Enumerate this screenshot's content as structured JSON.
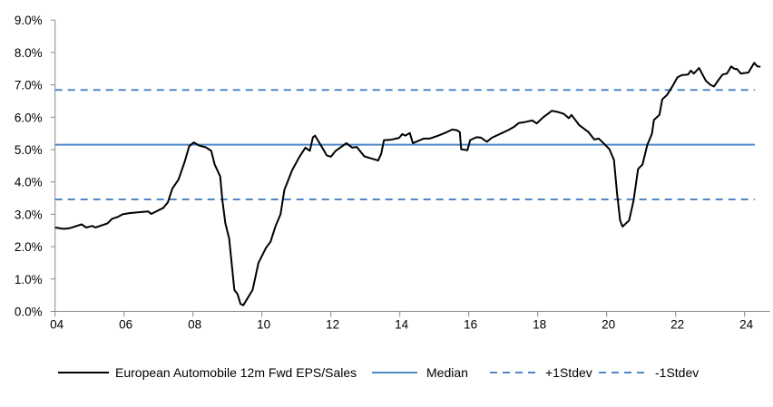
{
  "chart_data": {
    "type": "line",
    "title": "",
    "xlabel": "",
    "ylabel": "",
    "xlim": [
      2004,
      2024.6
    ],
    "ylim": [
      0,
      9
    ],
    "x_ticks": [
      2004,
      2006,
      2008,
      2010,
      2012,
      2014,
      2016,
      2018,
      2020,
      2022,
      2024
    ],
    "x_tick_labels": [
      "04",
      "06",
      "08",
      "10",
      "12",
      "14",
      "16",
      "18",
      "20",
      "22",
      "24"
    ],
    "y_ticks": [
      0,
      1,
      2,
      3,
      4,
      5,
      6,
      7,
      8,
      9
    ],
    "y_tick_labels": [
      "0.0%",
      "1.0%",
      "2.0%",
      "3.0%",
      "4.0%",
      "5.0%",
      "6.0%",
      "7.0%",
      "8.0%",
      "9.0%"
    ],
    "grid": false,
    "legend_position": "bottom",
    "series": [
      {
        "name": "European Automobile 12m Fwd EPS/Sales",
        "color": "#000000",
        "style": "solid",
        "points": [
          [
            2004.0,
            2.59
          ],
          [
            2004.25,
            2.55
          ],
          [
            2004.42,
            2.57
          ],
          [
            2004.77,
            2.69
          ],
          [
            2004.9,
            2.59
          ],
          [
            2005.08,
            2.64
          ],
          [
            2005.17,
            2.59
          ],
          [
            2005.52,
            2.72
          ],
          [
            2005.65,
            2.86
          ],
          [
            2005.82,
            2.92
          ],
          [
            2005.96,
            3.0
          ],
          [
            2006.18,
            3.04
          ],
          [
            2006.7,
            3.09
          ],
          [
            2006.79,
            3.01
          ],
          [
            2007.14,
            3.2
          ],
          [
            2007.27,
            3.37
          ],
          [
            2007.4,
            3.79
          ],
          [
            2007.58,
            4.07
          ],
          [
            2007.75,
            4.59
          ],
          [
            2007.89,
            5.1
          ],
          [
            2008.02,
            5.22
          ],
          [
            2008.19,
            5.12
          ],
          [
            2008.37,
            5.07
          ],
          [
            2008.53,
            4.96
          ],
          [
            2008.63,
            4.54
          ],
          [
            2008.79,
            4.17
          ],
          [
            2008.85,
            3.46
          ],
          [
            2008.94,
            2.72
          ],
          [
            2009.05,
            2.25
          ],
          [
            2009.2,
            0.66
          ],
          [
            2009.29,
            0.54
          ],
          [
            2009.38,
            0.23
          ],
          [
            2009.46,
            0.19
          ],
          [
            2009.73,
            0.66
          ],
          [
            2009.9,
            1.5
          ],
          [
            2010.12,
            1.97
          ],
          [
            2010.25,
            2.15
          ],
          [
            2010.39,
            2.62
          ],
          [
            2010.54,
            3.0
          ],
          [
            2010.65,
            3.75
          ],
          [
            2010.87,
            4.35
          ],
          [
            2011.09,
            4.78
          ],
          [
            2011.26,
            5.06
          ],
          [
            2011.39,
            4.96
          ],
          [
            2011.48,
            5.38
          ],
          [
            2011.54,
            5.43
          ],
          [
            2011.7,
            5.15
          ],
          [
            2011.88,
            4.82
          ],
          [
            2012.0,
            4.78
          ],
          [
            2012.14,
            4.96
          ],
          [
            2012.45,
            5.2
          ],
          [
            2012.62,
            5.06
          ],
          [
            2012.75,
            5.08
          ],
          [
            2012.97,
            4.79
          ],
          [
            2013.15,
            4.73
          ],
          [
            2013.37,
            4.66
          ],
          [
            2013.46,
            4.87
          ],
          [
            2013.54,
            5.29
          ],
          [
            2013.72,
            5.3
          ],
          [
            2013.98,
            5.36
          ],
          [
            2014.07,
            5.48
          ],
          [
            2014.16,
            5.43
          ],
          [
            2014.29,
            5.51
          ],
          [
            2014.38,
            5.2
          ],
          [
            2014.69,
            5.34
          ],
          [
            2014.86,
            5.34
          ],
          [
            2015.12,
            5.43
          ],
          [
            2015.3,
            5.51
          ],
          [
            2015.52,
            5.62
          ],
          [
            2015.65,
            5.6
          ],
          [
            2015.74,
            5.54
          ],
          [
            2015.78,
            5.01
          ],
          [
            2015.96,
            4.98
          ],
          [
            2016.04,
            5.29
          ],
          [
            2016.22,
            5.38
          ],
          [
            2016.35,
            5.37
          ],
          [
            2016.53,
            5.24
          ],
          [
            2016.66,
            5.36
          ],
          [
            2016.96,
            5.51
          ],
          [
            2017.14,
            5.6
          ],
          [
            2017.32,
            5.71
          ],
          [
            2017.45,
            5.82
          ],
          [
            2017.62,
            5.85
          ],
          [
            2017.84,
            5.9
          ],
          [
            2017.97,
            5.81
          ],
          [
            2018.15,
            5.99
          ],
          [
            2018.41,
            6.2
          ],
          [
            2018.59,
            6.16
          ],
          [
            2018.76,
            6.1
          ],
          [
            2018.9,
            5.97
          ],
          [
            2018.98,
            6.07
          ],
          [
            2019.2,
            5.76
          ],
          [
            2019.47,
            5.54
          ],
          [
            2019.64,
            5.31
          ],
          [
            2019.77,
            5.34
          ],
          [
            2019.95,
            5.15
          ],
          [
            2020.08,
            5.01
          ],
          [
            2020.21,
            4.68
          ],
          [
            2020.3,
            3.65
          ],
          [
            2020.39,
            2.81
          ],
          [
            2020.46,
            2.62
          ],
          [
            2020.65,
            2.81
          ],
          [
            2020.78,
            3.42
          ],
          [
            2020.91,
            4.4
          ],
          [
            2021.04,
            4.54
          ],
          [
            2021.18,
            5.15
          ],
          [
            2021.31,
            5.48
          ],
          [
            2021.37,
            5.92
          ],
          [
            2021.53,
            6.07
          ],
          [
            2021.61,
            6.55
          ],
          [
            2021.75,
            6.69
          ],
          [
            2021.92,
            6.98
          ],
          [
            2022.05,
            7.23
          ],
          [
            2022.18,
            7.3
          ],
          [
            2022.36,
            7.32
          ],
          [
            2022.44,
            7.44
          ],
          [
            2022.53,
            7.35
          ],
          [
            2022.68,
            7.52
          ],
          [
            2022.88,
            7.12
          ],
          [
            2023.01,
            7.0
          ],
          [
            2023.11,
            6.95
          ],
          [
            2023.23,
            7.13
          ],
          [
            2023.36,
            7.32
          ],
          [
            2023.49,
            7.35
          ],
          [
            2023.61,
            7.57
          ],
          [
            2023.71,
            7.49
          ],
          [
            2023.78,
            7.49
          ],
          [
            2023.89,
            7.35
          ],
          [
            2024.11,
            7.38
          ],
          [
            2024.28,
            7.68
          ],
          [
            2024.37,
            7.57
          ],
          [
            2024.46,
            7.56
          ]
        ]
      },
      {
        "name": "Median",
        "color": "#4f88c6",
        "style": "solid",
        "value": 5.15
      },
      {
        "name": "+1Stdev",
        "color": "#4f88c6",
        "style": "dashed",
        "value": 6.84
      },
      {
        "name": "-1Stdev",
        "color": "#4f88c6",
        "style": "dashed",
        "value": 3.46
      }
    ]
  }
}
